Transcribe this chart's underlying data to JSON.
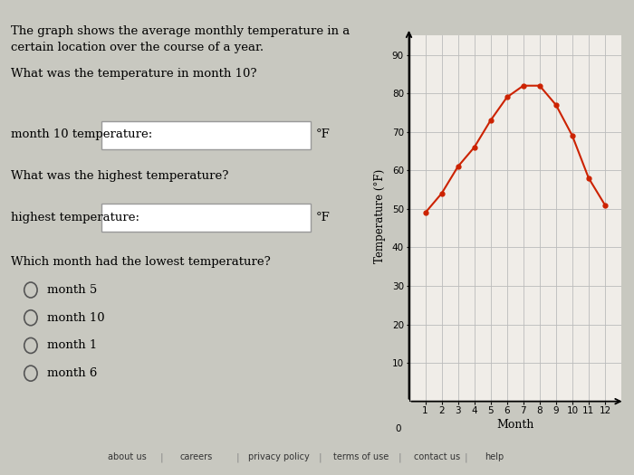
{
  "months": [
    1,
    2,
    3,
    4,
    5,
    6,
    7,
    8,
    9,
    10,
    11,
    12
  ],
  "temperatures": [
    49,
    54,
    61,
    66,
    73,
    79,
    82,
    82,
    77,
    69,
    58,
    51
  ],
  "line_color": "#cc2200",
  "marker_color": "#cc2200",
  "ylabel": "Temperature (°F)",
  "xlabel": "Month",
  "ylim": [
    0,
    95
  ],
  "xlim": [
    0,
    13
  ],
  "yticks": [
    10,
    20,
    30,
    40,
    50,
    60,
    70,
    80,
    90
  ],
  "xticks": [
    1,
    2,
    3,
    4,
    5,
    6,
    7,
    8,
    9,
    10,
    11,
    12
  ],
  "grid_color": "#bbbbbb",
  "page_bg": "#c8c8c0",
  "content_bg": "#f0ede8",
  "title_text1": "The graph shows the average monthly temperature in a",
  "title_text2": "certain location over the course of a year.",
  "q1_text": "What was the temperature in month 10?",
  "label1_text": "month 10 temperature:",
  "unit1": "°F",
  "q2_text": "What was the highest temperature?",
  "label2_text": "highest temperature:",
  "unit2": "°F",
  "q3_text": "Which month had the lowest temperature?",
  "options": [
    "month 5",
    "month 10",
    "month 1",
    "month 6"
  ],
  "footer": [
    "about us",
    "careers",
    "privacy policy",
    "terms of use",
    "contact us",
    "help"
  ]
}
